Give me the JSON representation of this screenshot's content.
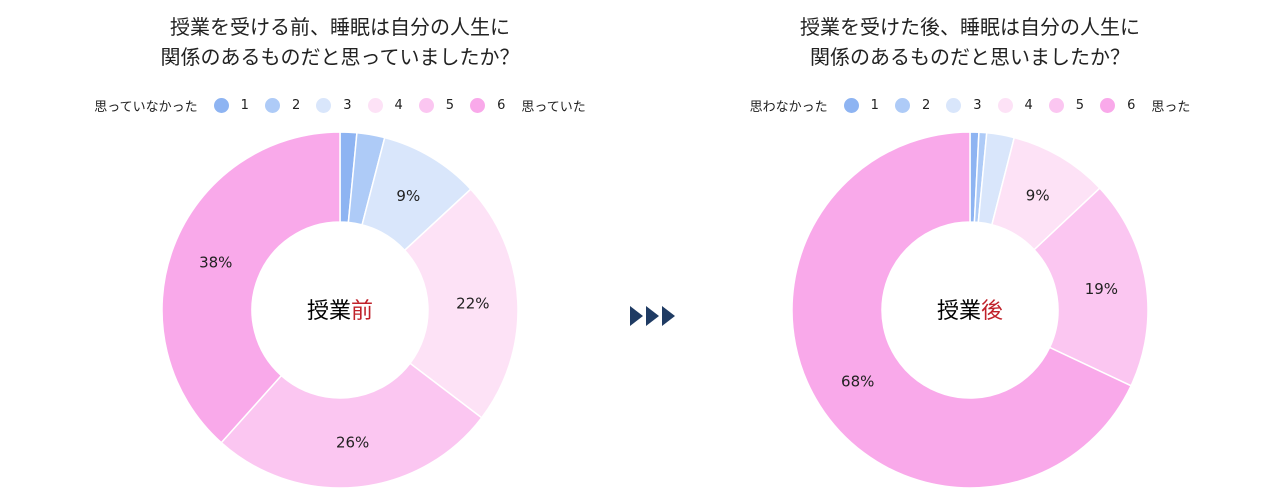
{
  "chart_data": [
    {
      "type": "pie",
      "title_lines": [
        "授業を受ける前、睡眠は自分の人生に",
        "関係のあるものだと思っていましたか？"
      ],
      "legend_low": "思っていなかった",
      "legend_high": "思っていた",
      "categories": [
        "1",
        "2",
        "3",
        "4",
        "5",
        "6"
      ],
      "values": [
        1.5,
        2.5,
        9,
        22,
        26,
        38
      ],
      "value_labels": [
        "",
        "",
        "9%",
        "22%",
        "26%",
        "38%"
      ],
      "center_label": {
        "base": "授業",
        "accent": "前"
      }
    },
    {
      "type": "pie",
      "title_lines": [
        "授業を受けた後、睡眠は自分の人生に",
        "関係のあるものだと思いましたか？"
      ],
      "legend_low": "思わなかった",
      "legend_high": "思った",
      "categories": [
        "1",
        "2",
        "3",
        "4",
        "5",
        "6"
      ],
      "values": [
        0.8,
        0.7,
        2.5,
        9,
        19,
        68
      ],
      "value_labels": [
        "",
        "",
        "",
        "9%",
        "19%",
        "68%"
      ],
      "center_label": {
        "base": "授業",
        "accent": "後"
      }
    }
  ],
  "colors": {
    "series": [
      "#8eb4f2",
      "#aecbf7",
      "#d9e6fb",
      "#fde2f6",
      "#fbc6f1",
      "#f9a9ea"
    ],
    "accent_text": "#c0212a",
    "arrow": "#1f3b63"
  }
}
